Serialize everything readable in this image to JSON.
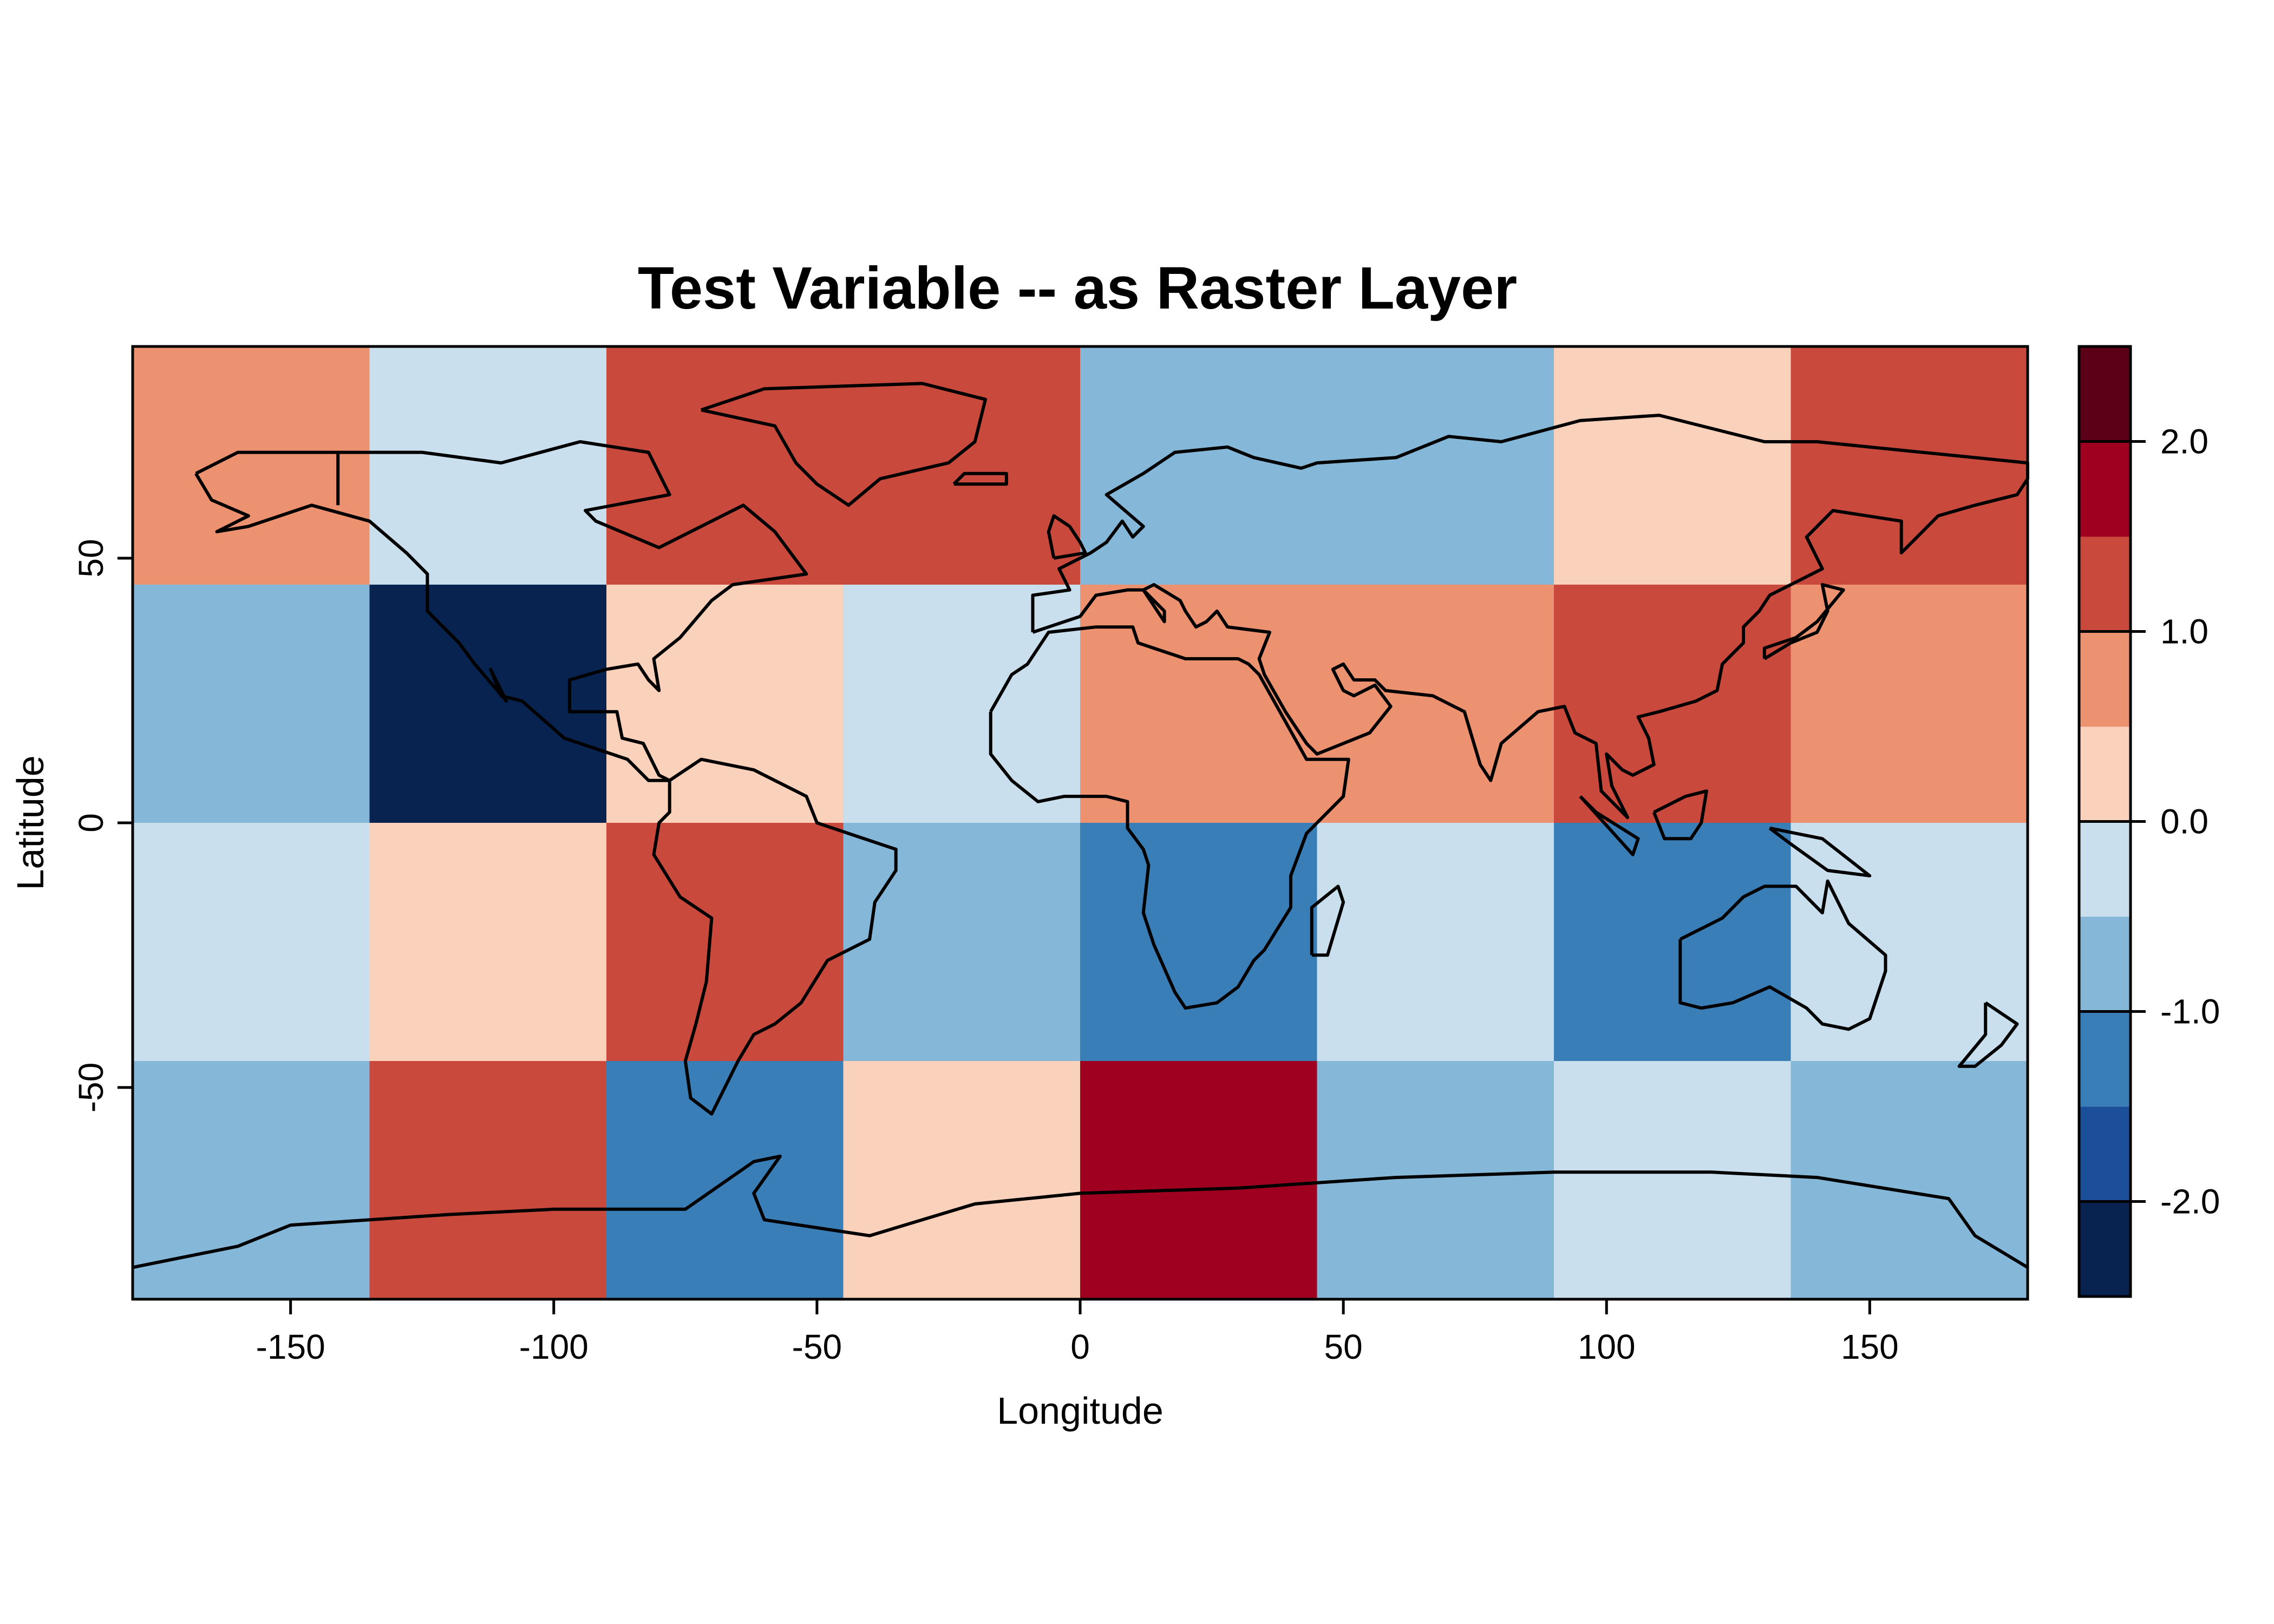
{
  "chart_data": {
    "type": "heatmap",
    "title": "Test Variable -- as Raster Layer",
    "xlabel": "Longitude",
    "ylabel": "Latitude",
    "xlim": [
      -180,
      180
    ],
    "ylim": [
      -90,
      90
    ],
    "x_ticks": [
      -150,
      -100,
      -50,
      0,
      50,
      100,
      150
    ],
    "y_ticks": [
      -50,
      0,
      50
    ],
    "x_tick_labels": [
      "-150",
      "-100",
      "-50",
      "0",
      "50",
      "100",
      "150"
    ],
    "y_tick_labels": [
      "-50",
      "0",
      "50"
    ],
    "cell_size_deg": 45,
    "lon_edges": [
      -180,
      -135,
      -90,
      -45,
      0,
      45,
      90,
      135,
      180
    ],
    "lat_edges": [
      90,
      45,
      0,
      -45,
      -90
    ],
    "grid_values": [
      [
        0.75,
        -0.25,
        1.25,
        1.25,
        -0.75,
        -0.75,
        0.25,
        1.25
      ],
      [
        -0.75,
        -2.25,
        0.25,
        -0.25,
        0.75,
        0.75,
        1.25,
        0.75
      ],
      [
        -0.25,
        0.25,
        1.25,
        -0.75,
        -1.25,
        -0.25,
        -1.25,
        -0.25
      ],
      [
        -0.75,
        1.25,
        -1.25,
        0.25,
        1.75,
        -0.75,
        -0.25,
        -0.75
      ]
    ],
    "colorbar": {
      "breaks": [
        -2.5,
        -2.0,
        -1.5,
        -1.0,
        -0.5,
        0.0,
        0.5,
        1.0,
        1.5,
        2.0,
        2.5
      ],
      "colors": [
        "#08234f",
        "#1c4f9a",
        "#3a7eb8",
        "#84b7d8",
        "#c9dfed",
        "#fad2bb",
        "#ec9270",
        "#c94a3d",
        "#a0001f",
        "#5c0018"
      ],
      "tick_values": [
        -2.0,
        -1.0,
        0.0,
        1.0,
        2.0
      ],
      "tick_labels": [
        "-2.0",
        "-1.0",
        "0.0",
        "1.0",
        "2.0"
      ]
    },
    "grid": false,
    "overlay": "world coastlines and country borders"
  }
}
